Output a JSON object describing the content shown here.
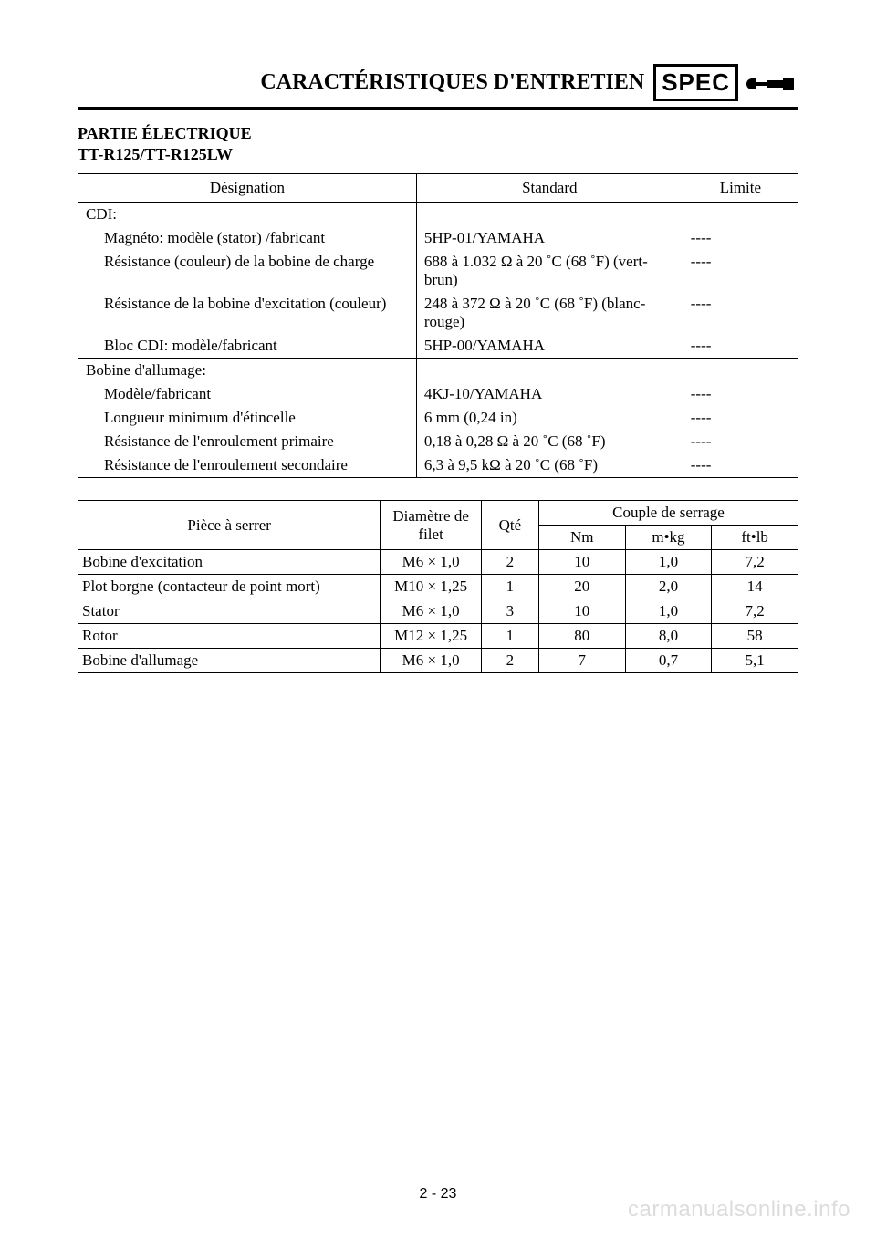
{
  "header": {
    "title": "CARACTÉRISTIQUES D'ENTRETIEN",
    "spec_label": "SPEC"
  },
  "section": {
    "line1": "PARTIE ÉLECTRIQUE",
    "line2": "TT-R125/TT-R125LW"
  },
  "spec_table": {
    "head": {
      "c1": "Désignation",
      "c2": "Standard",
      "c3": "Limite"
    },
    "rows": [
      {
        "c1": "CDI:",
        "c2": "",
        "c3": "",
        "indent": 0,
        "group_start": true
      },
      {
        "c1": "Magnéto: modèle (stator) /fabricant",
        "c2": "5HP-01/YAMAHA",
        "c3": "----",
        "indent": 1
      },
      {
        "c1": "Résistance (couleur) de la bobine de charge",
        "c2": "688 à 1.032 Ω à 20 ˚C (68 ˚F) (vert-brun)",
        "c3": "----",
        "indent": 1
      },
      {
        "c1": "Résistance de la bobine d'excitation (couleur)",
        "c2": "248 à 372 Ω à 20 ˚C (68 ˚F) (blanc-rouge)",
        "c3": "----",
        "indent": 1
      },
      {
        "c1": "Bloc CDI: modèle/fabricant",
        "c2": "5HP-00/YAMAHA",
        "c3": "----",
        "indent": 1,
        "group_end": true
      },
      {
        "c1": "Bobine d'allumage:",
        "c2": "",
        "c3": "",
        "indent": 0,
        "group_start": true
      },
      {
        "c1": "Modèle/fabricant",
        "c2": "4KJ-10/YAMAHA",
        "c3": "----",
        "indent": 1
      },
      {
        "c1": "Longueur minimum d'étincelle",
        "c2": "6 mm (0,24 in)",
        "c3": "----",
        "indent": 1
      },
      {
        "c1": "Résistance de l'enroulement primaire",
        "c2": "0,18 à 0,28 Ω à 20 ˚C (68 ˚F)",
        "c3": "----",
        "indent": 1
      },
      {
        "c1": "Résistance de l'enroulement secondaire",
        "c2": "6,3 à 9,5 kΩ à 20 ˚C (68 ˚F)",
        "c3": "----",
        "indent": 1,
        "group_end": true
      }
    ]
  },
  "torque_table": {
    "head": {
      "c1": "Pièce à serrer",
      "c2": "Diamètre de filet",
      "c3": "Qté",
      "group": "Couple de serrage",
      "u1": "Nm",
      "u2": "m•kg",
      "u3": "ft•lb"
    },
    "rows": [
      {
        "c1": "Bobine d'excitation",
        "c2": "M6 × 1,0",
        "c3": "2",
        "nm": "10",
        "mkg": "1,0",
        "ftlb": "7,2"
      },
      {
        "c1": "Plot borgne (contacteur de point mort)",
        "c2": "M10 × 1,25",
        "c3": "1",
        "nm": "20",
        "mkg": "2,0",
        "ftlb": "14"
      },
      {
        "c1": "Stator",
        "c2": "M6 × 1,0",
        "c3": "3",
        "nm": "10",
        "mkg": "1,0",
        "ftlb": "7,2"
      },
      {
        "c1": "Rotor",
        "c2": "M12 × 1,25",
        "c3": "1",
        "nm": "80",
        "mkg": "8,0",
        "ftlb": "58"
      },
      {
        "c1": "Bobine d'allumage",
        "c2": "M6 × 1,0",
        "c3": "2",
        "nm": "7",
        "mkg": "0,7",
        "ftlb": "5,1"
      }
    ]
  },
  "page_number": "2 - 23",
  "watermark": "carmanualsonline.info"
}
